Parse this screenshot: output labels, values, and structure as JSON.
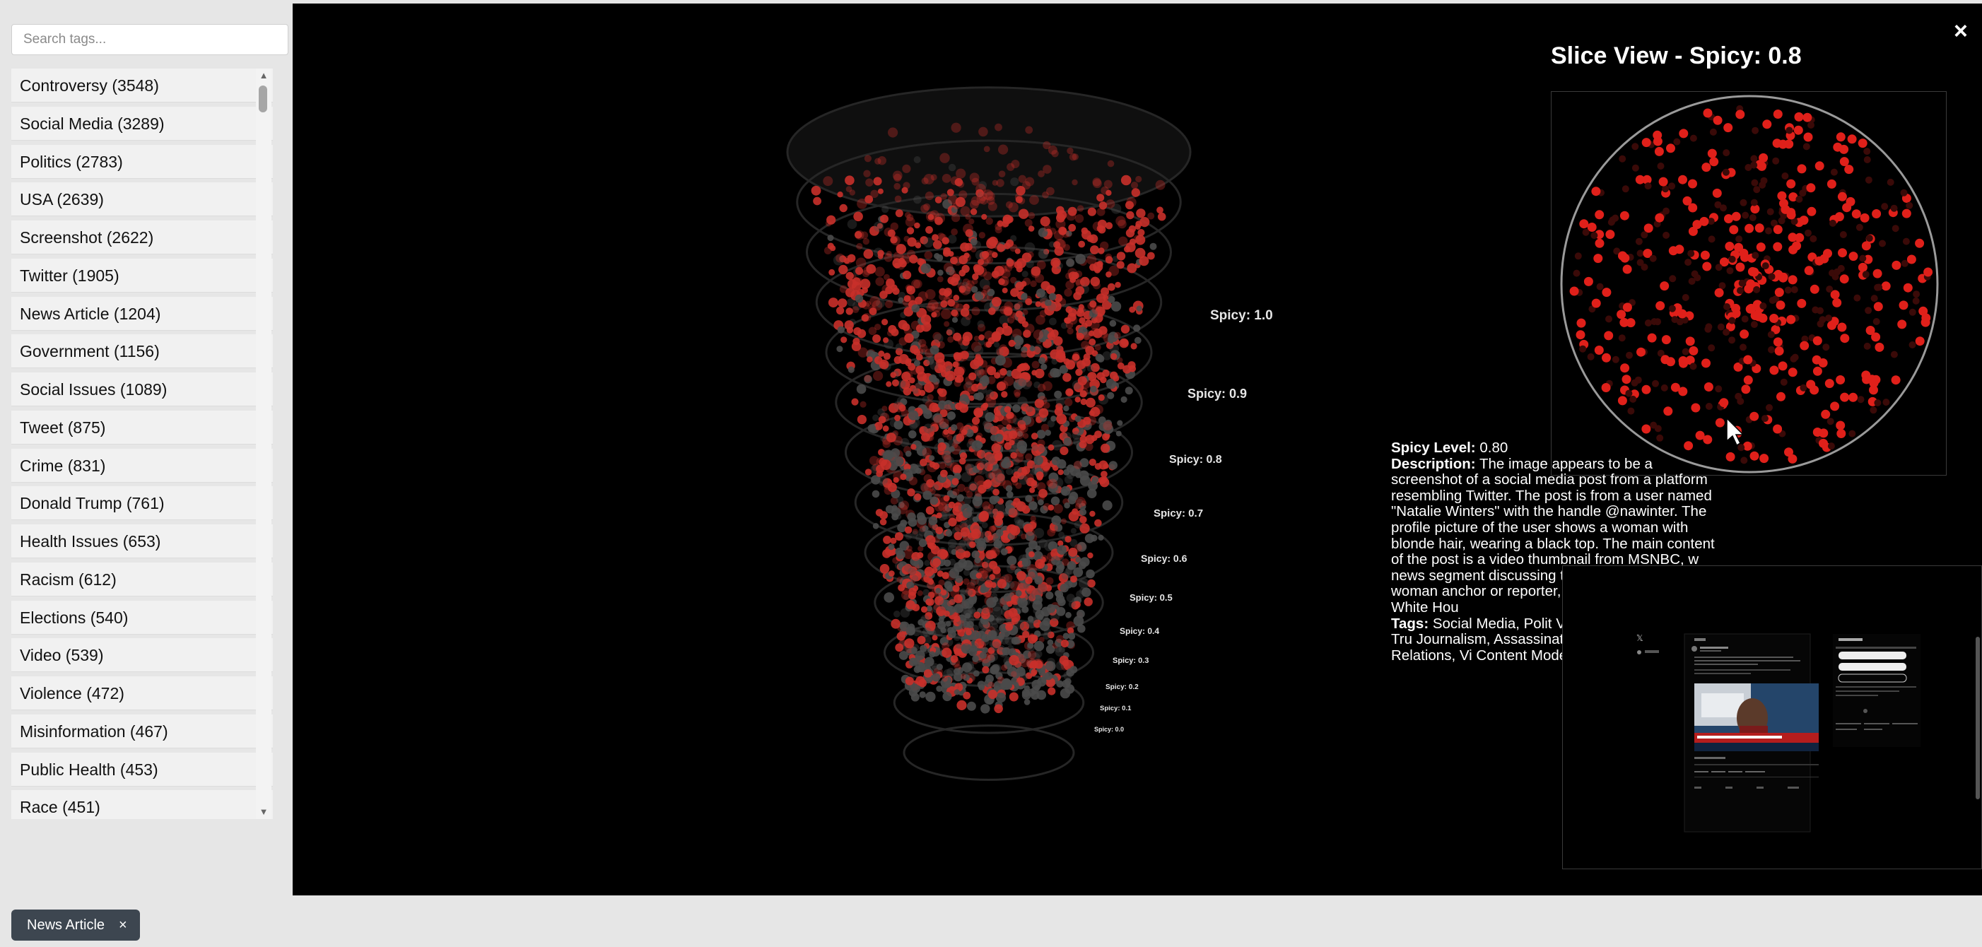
{
  "sidebar": {
    "search": {
      "placeholder": "Search tags..."
    },
    "tags": [
      "Controversy (3548)",
      "Social Media (3289)",
      "Politics (2783)",
      "USA (2639)",
      "Screenshot (2622)",
      "Twitter (1905)",
      "News Article (1204)",
      "Government (1156)",
      "Social Issues (1089)",
      "Tweet (875)",
      "Crime (831)",
      "Donald Trump (761)",
      "Health Issues (653)",
      "Racism (612)",
      "Elections (540)",
      "Video (539)",
      "Violence (472)",
      "Misinformation (467)",
      "Public Health (453)",
      "Race (451)"
    ]
  },
  "cone": {
    "labels": [
      "Spicy: 1.0",
      "Spicy: 0.9",
      "Spicy: 0.8",
      "Spicy: 0.7",
      "Spicy: 0.6",
      "Spicy: 0.5",
      "Spicy: 0.4",
      "Spicy: 0.3",
      "Spicy: 0.2",
      "Spicy: 0.1",
      "Spicy: 0.0"
    ],
    "point_color": "#c8302a"
  },
  "slice": {
    "title": "Slice View - Spicy: 0.8",
    "close": "×",
    "point_color": "#e0201a"
  },
  "info": {
    "spicy_label": "Spicy Level:",
    "spicy_value": "0.80",
    "description_label": "Description:",
    "description": "The image appears to be a screenshot of a social media post from a platform resembling Twitter. The post is from a user named \"Natalie Winters\" with the handle @nawinter. The profile picture of the user shows a woman with blonde hair, wearing a black top. The main content of the post is a video thumbnail from MSNBC, w news segment discussing thumbnail shows a woman anchor or reporter, sitting i backdrop of the White Hou",
    "tags_label": "Tags:",
    "tags": "Social Media, Polit Video, Twitter, Donald Tru Journalism, Assassinatio International Relations, Vi Content Moderation"
  },
  "filter_chip": {
    "label": "News Article",
    "close": "×"
  }
}
